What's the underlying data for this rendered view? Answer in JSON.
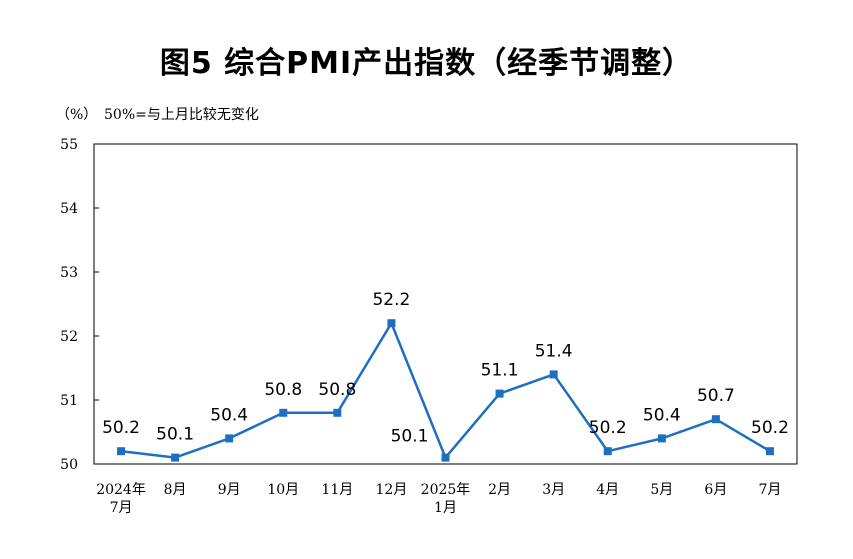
{
  "chart_data": {
    "type": "line",
    "title": "图5  综合PMI产出指数（经季节调整）",
    "unit": "（%）",
    "note": "50%=与上月比较无变化",
    "ylim": [
      50,
      55
    ],
    "yticks": [
      "50",
      "51",
      "52",
      "53",
      "54",
      "55"
    ],
    "categories": [
      [
        "2024年",
        "7月"
      ],
      [
        "8月"
      ],
      [
        "9月"
      ],
      [
        "10月"
      ],
      [
        "11月"
      ],
      [
        "12月"
      ],
      [
        "2025年",
        "1月"
      ],
      [
        "2月"
      ],
      [
        "3月"
      ],
      [
        "4月"
      ],
      [
        "5月"
      ],
      [
        "6月"
      ],
      [
        "7月"
      ]
    ],
    "series": [
      {
        "values": [
          50.2,
          50.1,
          50.4,
          50.8,
          50.8,
          52.2,
          50.1,
          51.1,
          51.4,
          50.2,
          50.4,
          50.7,
          50.2
        ],
        "labels": [
          "50.2",
          "50.1",
          "50.4",
          "50.8",
          "50.8",
          "52.2",
          "50.1",
          "51.1",
          "51.4",
          "50.2",
          "50.4",
          "50.7",
          "50.2"
        ],
        "color": "#1f6fc0"
      }
    ],
    "grid": false
  }
}
